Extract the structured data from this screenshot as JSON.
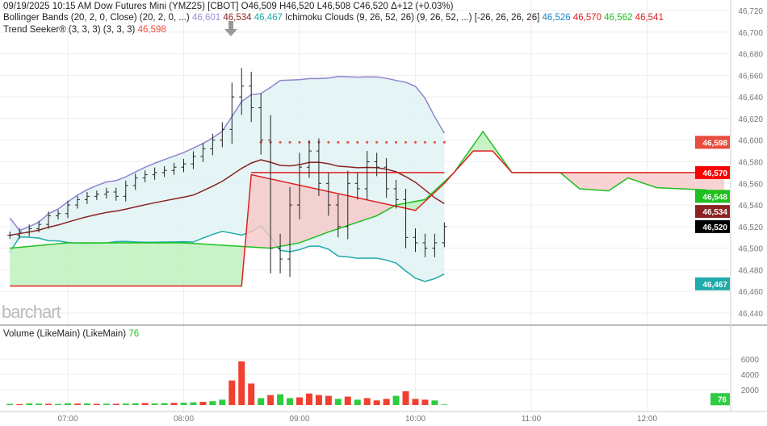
{
  "header": {
    "line1": "09/19/2025  10:15 AM Dow Futures Mini (YMZ25) [CBOT] O46,509 H46,520 L46,508 C46,520 Δ+12 (+0.03%)",
    "bb_label": "Bollinger Bands (20, 2, 0, Close)  (20, 2, 0, ...)",
    "bb_upper": "46,601",
    "bb_mid": "46,534",
    "bb_lower": "46,467",
    "ich_label": "Ichimoku Clouds (9, 26, 52, 26)  (9, 26, 52, ...) [-26, 26, 26, 26]",
    "ich_v1": "46,526",
    "ich_v2": "46,570",
    "ich_v3": "46,562",
    "ich_v4": "46,541",
    "ts_label": "Trend Seeker® (3, 3, 3)  (3, 3, 3)",
    "ts_value": "46,598",
    "volume_label": "Volume (LikeMain)  (LikeMain)",
    "volume_value": "76"
  },
  "logo": "barchart",
  "chart_data": {
    "type": "ohlc",
    "ylim": [
      46440,
      46720
    ],
    "yticks": [
      46440,
      46460,
      46480,
      46500,
      46520,
      46540,
      46560,
      46580,
      46600,
      46620,
      46640,
      46660,
      46680,
      46700,
      46720
    ],
    "xticks": [
      "07:00",
      "08:00",
      "09:00",
      "10:00",
      "11:00",
      "12:00"
    ],
    "volume_ylim": [
      0,
      6500
    ],
    "volume_yticks": [
      2000,
      4000,
      6000
    ],
    "bars": {
      "times": [
        "06:30",
        "06:35",
        "06:40",
        "06:45",
        "06:50",
        "06:55",
        "07:00",
        "07:05",
        "07:10",
        "07:15",
        "07:20",
        "07:25",
        "07:30",
        "07:35",
        "07:40",
        "07:45",
        "07:50",
        "07:55",
        "08:00",
        "08:05",
        "08:10",
        "08:15",
        "08:20",
        "08:25",
        "08:30",
        "08:35",
        "08:40",
        "08:45",
        "08:50",
        "08:55",
        "09:00",
        "09:05",
        "09:10",
        "09:15",
        "09:20",
        "09:25",
        "09:30",
        "09:35",
        "09:40",
        "09:45",
        "09:50",
        "09:55",
        "10:00",
        "10:05",
        "10:10",
        "10:15"
      ],
      "close": [
        46512,
        46515,
        46518,
        46522,
        46530,
        46532,
        46540,
        46545,
        46548,
        46550,
        46552,
        46548,
        46558,
        46565,
        46568,
        46570,
        46572,
        46575,
        46578,
        46585,
        46592,
        46600,
        46610,
        46640,
        46650,
        46630,
        46600,
        46500,
        46490,
        46540,
        46575,
        46590,
        46560,
        46540,
        46520,
        46560,
        46555,
        46580,
        46575,
        46555,
        46545,
        46510,
        46505,
        46500,
        46505,
        46520
      ],
      "range": [
        10,
        10,
        12,
        10,
        12,
        10,
        12,
        10,
        12,
        10,
        12,
        12,
        14,
        12,
        12,
        14,
        12,
        12,
        14,
        14,
        16,
        18,
        20,
        40,
        50,
        40,
        40,
        70,
        40,
        50,
        40,
        30,
        35,
        30,
        30,
        35,
        30,
        30,
        25,
        25,
        25,
        30,
        25,
        25,
        25,
        12
      ],
      "volume": [
        150,
        120,
        200,
        180,
        160,
        140,
        220,
        180,
        200,
        150,
        170,
        160,
        190,
        220,
        260,
        200,
        240,
        280,
        300,
        350,
        420,
        500,
        700,
        3200,
        5700,
        2800,
        900,
        1300,
        1400,
        900,
        1000,
        1500,
        1300,
        1200,
        800,
        1100,
        700,
        900,
        600,
        800,
        1200,
        1800,
        800,
        700,
        600,
        76
      ],
      "volume_up": [
        true,
        false,
        true,
        true,
        false,
        true,
        true,
        false,
        true,
        false,
        true,
        false,
        true,
        true,
        false,
        true,
        true,
        false,
        true,
        true,
        false,
        true,
        true,
        false,
        false,
        false,
        true,
        false,
        true,
        true,
        false,
        false,
        false,
        false,
        true,
        false,
        true,
        false,
        false,
        false,
        true,
        false,
        false,
        false,
        true,
        true
      ]
    },
    "bollinger": {
      "upper": 46601,
      "middle": 46534,
      "lower": 46467
    },
    "ichimoku": {
      "span_a": [
        [
          "06:30",
          46500
        ],
        [
          "07:00",
          46505
        ],
        [
          "08:00",
          46505
        ],
        [
          "08:45",
          46500
        ],
        [
          "09:00",
          46505
        ],
        [
          "09:15",
          46515
        ],
        [
          "09:40",
          46530
        ],
        [
          "09:50",
          46540
        ],
        [
          "10:05",
          46545
        ],
        [
          "10:20",
          46570
        ],
        [
          "10:35",
          46608
        ],
        [
          "10:50",
          46570
        ],
        [
          "11:15",
          46570
        ],
        [
          "11:25",
          46555
        ],
        [
          "11:40",
          46553
        ],
        [
          "11:50",
          46565
        ],
        [
          "12:05",
          46556
        ],
        [
          "12:30",
          46554
        ],
        [
          "12:40",
          46550
        ]
      ],
      "span_b": [
        [
          "06:30",
          46465
        ],
        [
          "08:30",
          46465
        ],
        [
          "08:35",
          46568
        ],
        [
          "10:00",
          46535
        ],
        [
          "10:15",
          46560
        ],
        [
          "10:30",
          46590
        ],
        [
          "10:40",
          46590
        ],
        [
          "10:50",
          46570
        ],
        [
          "12:40",
          46570
        ]
      ],
      "base": [
        [
          "08:35",
          46570
        ],
        [
          "10:15",
          46570
        ]
      ]
    },
    "trend_seeker": {
      "value": 46598,
      "start": "08:40",
      "end": "10:15"
    },
    "price_tags": [
      {
        "value": "46,598",
        "color": "#e74c3c"
      },
      {
        "value": "46,570",
        "color": "#ff0000"
      },
      {
        "value": "46,548",
        "color": "#1fbf1f"
      },
      {
        "value": "46,534",
        "color": "#8b2323"
      },
      {
        "value": "46,520",
        "color": "#000000"
      },
      {
        "value": "46,467",
        "color": "#20aaaa"
      }
    ],
    "volume_tag": "76"
  }
}
